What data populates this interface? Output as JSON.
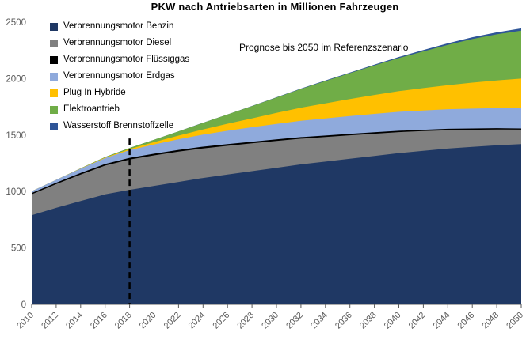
{
  "chart_data": {
    "type": "area",
    "stacked": true,
    "title": "PKW nach Antriebsarten in Millionen Fahrzeugen",
    "annotation": "Prognose bis 2050 im Referenzszenario",
    "x": [
      2010,
      2012,
      2014,
      2016,
      2018,
      2020,
      2022,
      2024,
      2026,
      2028,
      2030,
      2032,
      2034,
      2036,
      2038,
      2040,
      2042,
      2044,
      2046,
      2048,
      2050
    ],
    "series": [
      {
        "name": "Verbrennungsmotor Benzin",
        "color": "#1f3864",
        "values": [
          790,
          855,
          915,
          975,
          1015,
          1050,
          1085,
          1120,
          1150,
          1180,
          1210,
          1240,
          1265,
          1290,
          1315,
          1340,
          1360,
          1380,
          1395,
          1410,
          1420
        ]
      },
      {
        "name": "Verbrennungsmotor Diesel",
        "color": "#808080",
        "values": [
          185,
          210,
          235,
          255,
          268,
          270,
          268,
          262,
          255,
          247,
          238,
          228,
          218,
          208,
          197,
          186,
          175,
          163,
          152,
          140,
          128
        ]
      },
      {
        "name": "Verbrennungsmotor Flüssiggas",
        "color": "#000000",
        "values": [
          12,
          13,
          14,
          14,
          15,
          15,
          15,
          15,
          15,
          14,
          14,
          14,
          13,
          13,
          13,
          12,
          12,
          12,
          11,
          11,
          10
        ]
      },
      {
        "name": "Verbrennungsmotor Erdgas",
        "color": "#8faadc",
        "values": [
          15,
          25,
          38,
          52,
          68,
          82,
          95,
          107,
          118,
          128,
          137,
          145,
          152,
          158,
          163,
          168,
          171,
          174,
          176,
          178,
          180
        ]
      },
      {
        "name": "Plug In Hybride",
        "color": "#ffc000",
        "values": [
          0,
          0,
          2,
          5,
          10,
          20,
          32,
          46,
          62,
          79,
          97,
          115,
          133,
          150,
          167,
          183,
          198,
          213,
          230,
          245,
          262
        ]
      },
      {
        "name": "Elektroantrieb",
        "color": "#70ad47",
        "values": [
          0,
          0,
          1,
          4,
          10,
          22,
          38,
          58,
          82,
          108,
          136,
          166,
          197,
          229,
          261,
          293,
          325,
          356,
          386,
          408,
          425
        ]
      },
      {
        "name": "Wasserstoff Brennstoffzelle",
        "color": "#2e5597",
        "values": [
          0,
          0,
          0,
          0,
          0,
          0,
          0,
          1,
          1,
          2,
          3,
          4,
          5,
          6,
          8,
          10,
          12,
          14,
          16,
          18,
          20
        ]
      }
    ],
    "ylim": [
      0,
      2500
    ],
    "yticks": [
      0,
      500,
      1000,
      1500,
      2000,
      2500
    ],
    "forecast_year": 2018,
    "legend_position": "top-left",
    "grid": false,
    "axis_text_color": "#595959",
    "axis_line_color": "#595959",
    "forecast_line_color": "#000000"
  }
}
